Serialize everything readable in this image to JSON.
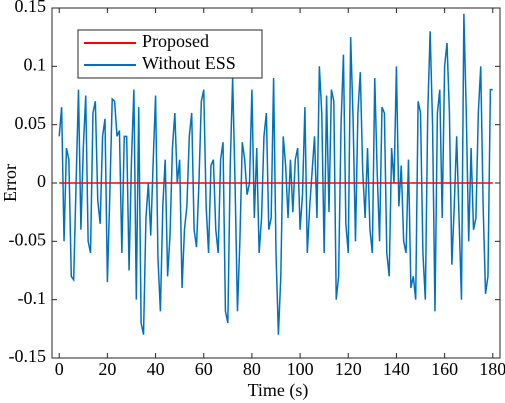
{
  "chart_data": {
    "type": "line",
    "xlabel": "Time (s)",
    "ylabel": "Error",
    "x": [
      0,
      1,
      2,
      3,
      4,
      5,
      6,
      7,
      8,
      9,
      10,
      11,
      12,
      13,
      14,
      15,
      16,
      17,
      18,
      19,
      20,
      21,
      22,
      23,
      24,
      25,
      26,
      27,
      28,
      29,
      30,
      31,
      32,
      33,
      34,
      35,
      36,
      37,
      38,
      39,
      40,
      41,
      42,
      43,
      44,
      45,
      46,
      47,
      48,
      49,
      50,
      51,
      52,
      53,
      54,
      55,
      56,
      57,
      58,
      59,
      60,
      61,
      62,
      63,
      64,
      65,
      66,
      67,
      68,
      69,
      70,
      71,
      72,
      73,
      74,
      75,
      76,
      77,
      78,
      79,
      80,
      81,
      82,
      83,
      84,
      85,
      86,
      87,
      88,
      89,
      90,
      91,
      92,
      93,
      94,
      95,
      96,
      97,
      98,
      99,
      100,
      101,
      102,
      103,
      104,
      105,
      106,
      107,
      108,
      109,
      110,
      111,
      112,
      113,
      114,
      115,
      116,
      117,
      118,
      119,
      120,
      121,
      122,
      123,
      124,
      125,
      126,
      127,
      128,
      129,
      130,
      131,
      132,
      133,
      134,
      135,
      136,
      137,
      138,
      139,
      140,
      141,
      142,
      143,
      144,
      145,
      146,
      147,
      148,
      149,
      150,
      151,
      152,
      153,
      154,
      155,
      156,
      157,
      158,
      159,
      160,
      161,
      162,
      163,
      164,
      165,
      166,
      167,
      168,
      169,
      170,
      171,
      172,
      173,
      174,
      175,
      176,
      177,
      178,
      179,
      180
    ],
    "series": [
      {
        "name": "Proposed",
        "color": "#ff0000",
        "values": [
          0,
          0,
          0,
          0,
          0,
          0,
          0,
          0,
          0,
          0,
          0,
          0,
          0,
          0,
          0,
          0,
          0,
          0,
          0,
          0,
          0,
          0,
          0,
          0,
          0,
          0,
          0,
          0,
          0,
          0,
          0,
          0,
          0,
          0,
          0,
          0,
          0,
          0,
          0,
          0,
          0,
          0,
          0,
          0,
          0,
          0,
          0,
          0,
          0,
          0,
          0,
          0,
          0,
          0,
          0,
          0,
          0,
          0,
          0,
          0,
          0,
          0,
          0,
          0,
          0,
          0,
          0,
          0,
          0,
          0,
          0,
          0,
          0,
          0,
          0,
          0,
          0,
          0,
          0,
          0,
          0,
          0,
          0,
          0,
          0,
          0,
          0,
          0,
          0,
          0,
          0,
          0,
          0,
          0,
          0,
          0,
          0,
          0,
          0,
          0,
          0,
          0,
          0,
          0,
          0,
          0,
          0,
          0,
          0,
          0,
          0,
          0,
          0,
          0,
          0,
          0,
          0,
          0,
          0,
          0,
          0,
          0,
          0,
          0,
          0,
          0,
          0,
          0,
          0,
          0,
          0,
          0,
          0,
          0,
          0,
          0,
          0,
          0,
          0,
          0,
          0,
          0,
          0,
          0,
          0,
          0,
          0,
          0,
          0,
          0,
          0,
          0,
          0,
          0,
          0,
          0,
          0,
          0,
          0,
          0,
          0,
          0,
          0,
          0,
          0,
          0,
          0,
          0,
          0,
          0,
          0,
          0,
          0,
          0,
          0,
          0,
          0,
          0,
          0,
          0,
          0
        ]
      },
      {
        "name": "Without ESS",
        "color": "#0072bd",
        "values": [
          0.04,
          0.065,
          -0.05,
          0.03,
          0.02,
          -0.08,
          -0.083,
          0.0,
          0.08,
          -0.04,
          0.03,
          0.075,
          -0.05,
          -0.06,
          0.06,
          0.07,
          -0.015,
          -0.035,
          0.04,
          0.055,
          -0.085,
          -0.01,
          0.072,
          0.07,
          0.04,
          0.045,
          -0.06,
          0.04,
          0.04,
          -0.075,
          0.02,
          0.08,
          -0.1,
          0.065,
          -0.12,
          -0.13,
          -0.03,
          0.0,
          -0.045,
          0.018,
          0.075,
          -0.065,
          -0.11,
          -0.02,
          0.02,
          -0.08,
          -0.045,
          0.03,
          0.06,
          0.0,
          0.02,
          -0.09,
          -0.04,
          -0.02,
          0.04,
          0.06,
          -0.04,
          -0.055,
          0.0,
          0.07,
          0.08,
          -0.02,
          -0.06,
          0.015,
          0.02,
          -0.04,
          -0.06,
          0.02,
          0.035,
          -0.11,
          -0.12,
          0.015,
          0.09,
          0.0,
          -0.11,
          -0.05,
          0.035,
          0.02,
          -0.01,
          0.0,
          0.08,
          -0.03,
          0.03,
          -0.06,
          -0.03,
          0.04,
          0.06,
          -0.04,
          -0.03,
          0.09,
          -0.06,
          -0.13,
          -0.08,
          0.04,
          0.015,
          -0.03,
          0.02,
          -0.025,
          0.02,
          0.03,
          -0.04,
          -0.01,
          0.065,
          -0.06,
          -0.02,
          0.01,
          0.04,
          -0.03,
          0.1,
          0.06,
          -0.06,
          0.075,
          -0.025,
          0.08,
          0.07,
          -0.1,
          -0.08,
          0.05,
          0.11,
          -0.035,
          -0.06,
          0.125,
          0.055,
          -0.05,
          0.06,
          0.095,
          0.01,
          -0.03,
          0.03,
          -0.04,
          -0.06,
          0.09,
          0.01,
          -0.05,
          0.065,
          0.06,
          -0.06,
          -0.08,
          0.03,
          0.0,
          0.1,
          -0.02,
          0.015,
          -0.05,
          -0.06,
          0.02,
          -0.09,
          -0.08,
          -0.1,
          0.07,
          0.06,
          -0.06,
          -0.1,
          0.06,
          0.13,
          0.05,
          -0.11,
          0.06,
          0.08,
          -0.03,
          0.1,
          0.12,
          0.06,
          -0.07,
          -0.02,
          0.04,
          -0.03,
          -0.1,
          0.145,
          0.06,
          -0.05,
          0.03,
          -0.04,
          -0.03,
          0.06,
          0.1,
          -0.02,
          -0.095,
          -0.08,
          0.08,
          0.08
        ]
      }
    ],
    "xlim": [
      -3,
      183
    ],
    "xticks": [
      0,
      20,
      40,
      60,
      80,
      100,
      120,
      140,
      160,
      180
    ],
    "ylim": [
      -0.15,
      0.15
    ],
    "yticks": [
      -0.15,
      -0.1,
      -0.05,
      0,
      0.05,
      0.1,
      0.15
    ],
    "legend": "upper left"
  }
}
